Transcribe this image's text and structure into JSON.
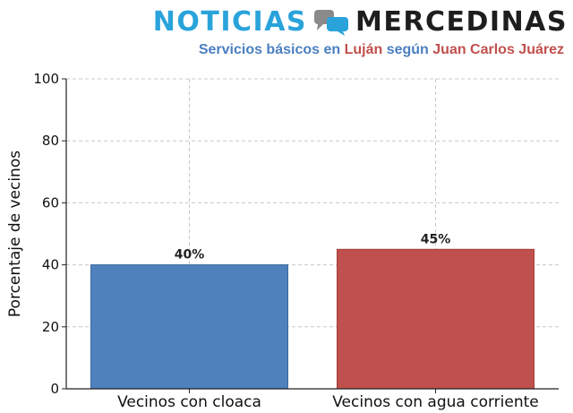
{
  "header": {
    "brand_left": "NOTICIAS",
    "brand_right": "MERCEDINAS",
    "brand_icon": "chat-bubbles-icon",
    "subtitle_parts": [
      "Servicios básicos en ",
      "Luján",
      " según ",
      "Juan Carlos Juárez"
    ]
  },
  "colors": {
    "brand_blue": "#2aa3db",
    "brand_dark": "#1e1e1e",
    "bar_blue": "#4f81bd",
    "bar_red": "#c0504d"
  },
  "chart_data": {
    "type": "bar",
    "categories": [
      "Vecinos con cloaca",
      "Vecinos con agua corriente"
    ],
    "values": [
      40,
      45
    ],
    "data_labels": [
      "40%",
      "45%"
    ],
    "bar_colors": [
      "#4f81bd",
      "#c0504d"
    ],
    "title": "",
    "xlabel": "",
    "ylabel": "Porcentaje de vecinos",
    "ylim": [
      0,
      100
    ],
    "yticks": [
      0,
      20,
      40,
      60,
      80,
      100
    ],
    "grid": true
  }
}
